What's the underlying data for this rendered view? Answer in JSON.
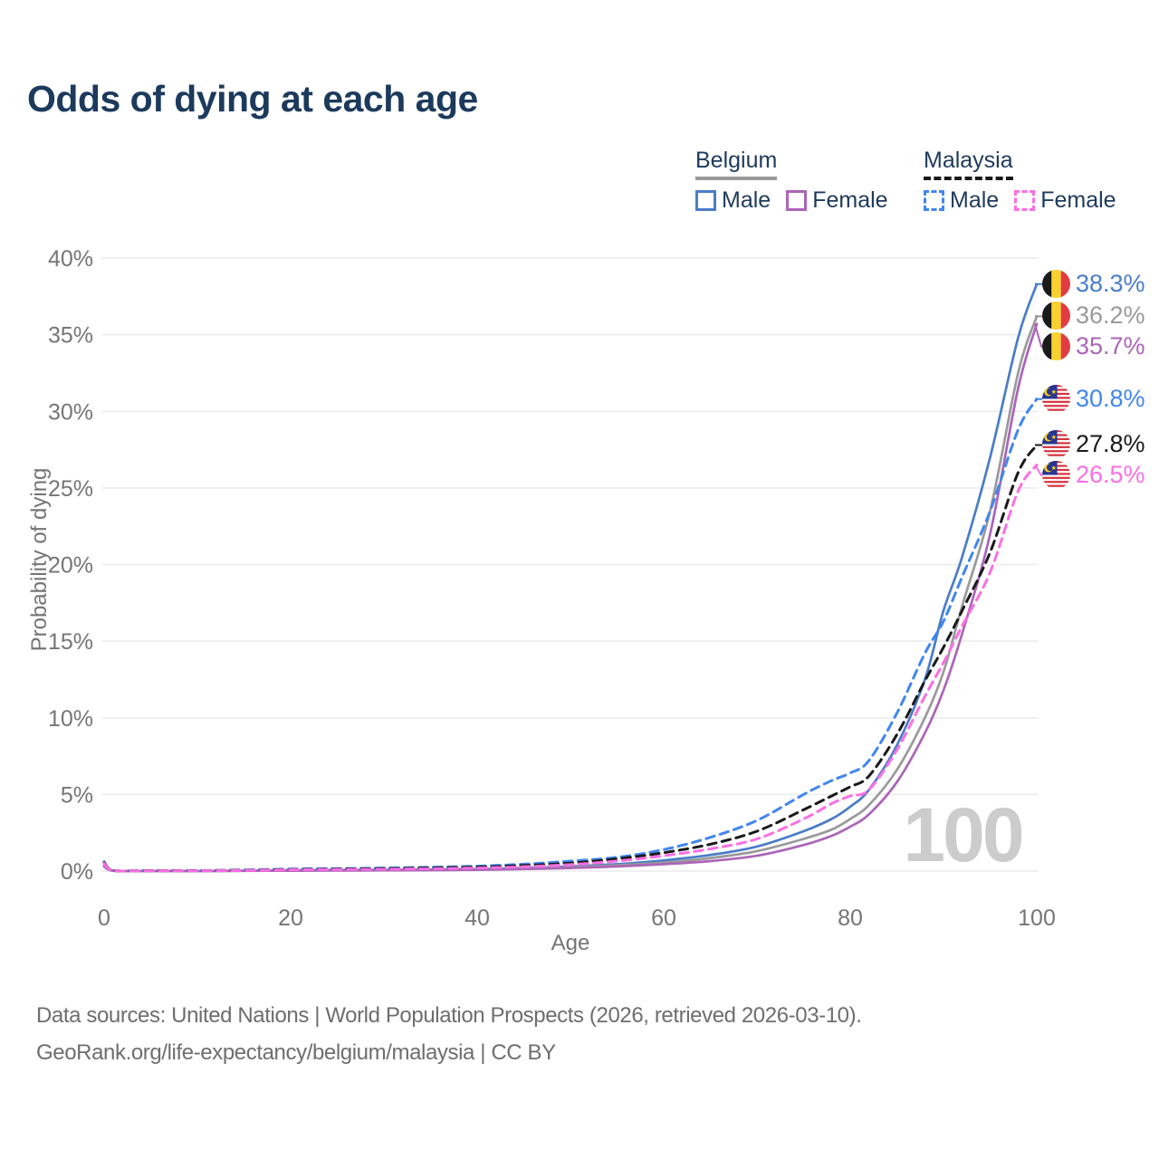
{
  "title": "Odds of dying at each age",
  "watermark": "100",
  "legend": {
    "groups": [
      {
        "name": "Belgium",
        "line_style": "solid",
        "underline_color": "#9a9a9a",
        "items": [
          {
            "label": "Male",
            "color": "#4a7dc8",
            "dashed": false
          },
          {
            "label": "Female",
            "color": "#ac64b8",
            "dashed": false
          }
        ]
      },
      {
        "name": "Malaysia",
        "line_style": "dashed",
        "underline_color": "#1a1a1a",
        "items": [
          {
            "label": "Male",
            "color": "#4186f0",
            "dashed": true
          },
          {
            "label": "Female",
            "color": "#fc6ee5",
            "dashed": true
          }
        ]
      }
    ]
  },
  "chart_data": {
    "type": "line",
    "title": "Odds of dying at each age",
    "xlabel": "Age",
    "ylabel": "Probability of dying",
    "xlim": [
      0,
      100
    ],
    "ylim": [
      0,
      40
    ],
    "xticks": [
      0,
      20,
      40,
      60,
      80,
      100
    ],
    "yticks": [
      "0%",
      "5%",
      "10%",
      "15%",
      "20%",
      "25%",
      "30%",
      "35%",
      "40%"
    ],
    "ytick_values": [
      0,
      5,
      10,
      15,
      20,
      25,
      30,
      35,
      40
    ],
    "grid": "horizontal",
    "legend_position": "top-right",
    "x": [
      0,
      1,
      5,
      10,
      15,
      20,
      25,
      30,
      35,
      40,
      45,
      50,
      55,
      60,
      65,
      70,
      75,
      78,
      80,
      82,
      85,
      88,
      90,
      92,
      95,
      98,
      100
    ],
    "series": [
      {
        "name": "Belgium Male",
        "country": "Belgium",
        "sex": "Male",
        "color": "#4a7dc8",
        "dashed": false,
        "flag_icon": "belgium-flag-icon",
        "end_label": "38.3%",
        "values": [
          0.35,
          0.03,
          0.01,
          0.01,
          0.02,
          0.06,
          0.07,
          0.08,
          0.1,
          0.13,
          0.2,
          0.3,
          0.45,
          0.7,
          1.05,
          1.6,
          2.6,
          3.4,
          4.2,
          5.3,
          8.2,
          12.5,
          17.0,
          20.5,
          27.0,
          34.8,
          38.3
        ]
      },
      {
        "name": "Belgium Both Sexes",
        "country": "Belgium",
        "sex": "Both",
        "color": "#9a9a9a",
        "dashed": false,
        "flag_icon": "belgium-flag-icon",
        "end_label": "36.2%",
        "values": [
          0.33,
          0.025,
          0.008,
          0.008,
          0.015,
          0.04,
          0.05,
          0.06,
          0.08,
          0.1,
          0.16,
          0.25,
          0.38,
          0.55,
          0.85,
          1.3,
          2.1,
          2.7,
          3.4,
          4.3,
          6.6,
          10.0,
          13.0,
          17.3,
          23.5,
          32.5,
          36.2
        ]
      },
      {
        "name": "Belgium Female",
        "country": "Belgium",
        "sex": "Female",
        "color": "#ac64b8",
        "dashed": false,
        "flag_icon": "belgium-flag-icon",
        "end_label": "35.7%",
        "values": [
          0.3,
          0.02,
          0.007,
          0.007,
          0.012,
          0.025,
          0.035,
          0.045,
          0.06,
          0.08,
          0.13,
          0.2,
          0.3,
          0.45,
          0.65,
          1.0,
          1.7,
          2.3,
          2.9,
          3.7,
          5.8,
          9.0,
          11.8,
          15.5,
          22.0,
          31.5,
          35.7
        ]
      },
      {
        "name": "Malaysia Male",
        "country": "Malaysia",
        "sex": "Male",
        "color": "#4186f0",
        "dashed": true,
        "flag_icon": "malaysia-flag-icon",
        "end_label": "30.8%",
        "values": [
          0.6,
          0.05,
          0.03,
          0.03,
          0.07,
          0.13,
          0.16,
          0.2,
          0.25,
          0.32,
          0.45,
          0.65,
          0.9,
          1.4,
          2.2,
          3.3,
          5.0,
          5.9,
          6.4,
          7.2,
          10.3,
          14.2,
          16.3,
          19.2,
          23.5,
          28.8,
          30.8
        ]
      },
      {
        "name": "Malaysia Both Sexes",
        "country": "Malaysia",
        "sex": "Both",
        "color": "#1a1a1a",
        "dashed": true,
        "flag_icon": "malaysia-flag-icon",
        "end_label": "27.8%",
        "values": [
          0.55,
          0.045,
          0.025,
          0.025,
          0.055,
          0.1,
          0.13,
          0.16,
          0.2,
          0.26,
          0.36,
          0.52,
          0.8,
          1.2,
          1.75,
          2.6,
          4.0,
          4.9,
          5.5,
          6.2,
          8.9,
          12.4,
          14.6,
          17.0,
          20.8,
          26.0,
          27.8
        ]
      },
      {
        "name": "Malaysia Female",
        "country": "Malaysia",
        "sex": "Female",
        "color": "#fc6ee5",
        "dashed": true,
        "flag_icon": "malaysia-flag-icon",
        "end_label": "26.5%",
        "values": [
          0.5,
          0.04,
          0.02,
          0.02,
          0.04,
          0.08,
          0.1,
          0.12,
          0.15,
          0.2,
          0.28,
          0.42,
          0.65,
          1.0,
          1.45,
          2.1,
          3.4,
          4.4,
          4.9,
          5.3,
          7.9,
          11.4,
          13.6,
          16.0,
          19.5,
          24.8,
          26.5
        ]
      }
    ]
  },
  "footer": {
    "line1": "Data sources: United Nations | World Population Prospects (2026, retrieved 2026-03-10).",
    "line2": "GeoRank.org/life-expectancy/belgium/malaysia | CC BY"
  }
}
